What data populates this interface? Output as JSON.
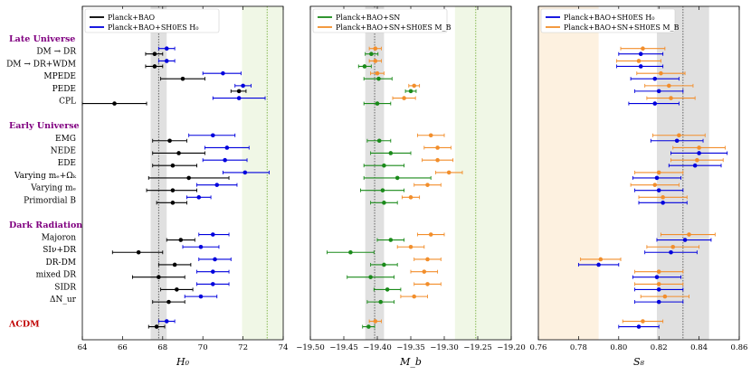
{
  "colors": {
    "black": "#000000",
    "blue": "#0000dd",
    "green": "#1a8a1a",
    "orange": "#f28e2b",
    "group": "#800080",
    "lcdm": "#c00000",
    "band_gray": "#e0e0e0",
    "band_green": "#f0f7e6",
    "band_orange": "#fdf1e0",
    "ref_line": "#555555",
    "ref_green": "#7ab040"
  },
  "rows": [
    {
      "label": "Late Universe",
      "kind": "group"
    },
    {
      "label": "DM → DR",
      "kind": "row"
    },
    {
      "label": "DM → DR+WDM",
      "kind": "row"
    },
    {
      "label": "MPEDE",
      "kind": "row"
    },
    {
      "label": "PEDE",
      "kind": "row"
    },
    {
      "label": "CPL",
      "kind": "row"
    },
    {
      "label": "",
      "kind": "gap"
    },
    {
      "label": "Early Universe",
      "kind": "group"
    },
    {
      "label": "EMG",
      "kind": "row"
    },
    {
      "label": "NEDE",
      "kind": "row"
    },
    {
      "label": "EDE",
      "kind": "row"
    },
    {
      "label": "Varying mₑ+Ωₖ",
      "kind": "row"
    },
    {
      "label": "Varying mₑ",
      "kind": "row"
    },
    {
      "label": "Primordial B",
      "kind": "row"
    },
    {
      "label": "",
      "kind": "gap"
    },
    {
      "label": "Dark Radiation",
      "kind": "group"
    },
    {
      "label": "Majoron",
      "kind": "row"
    },
    {
      "label": "SIν+DR",
      "kind": "row"
    },
    {
      "label": "DR-DM",
      "kind": "row"
    },
    {
      "label": "mixed DR",
      "kind": "row"
    },
    {
      "label": "SIDR",
      "kind": "row"
    },
    {
      "label": "ΔN_ur",
      "kind": "row"
    },
    {
      "label": "",
      "kind": "gap"
    },
    {
      "label": "ΛCDM",
      "kind": "lcdm"
    }
  ],
  "chart_data": [
    {
      "type": "errorbar",
      "xlabel": "H₀",
      "xlim": [
        64,
        74
      ],
      "ticks": [
        64,
        66,
        68,
        70,
        72,
        74
      ],
      "tick_labels": [
        "64",
        "66",
        "68",
        "70",
        "72",
        "74"
      ],
      "legend": [
        {
          "name": "Planck+BAO",
          "color": "black"
        },
        {
          "name": "Planck+BAO+SH0ES H₀",
          "color": "blue"
        }
      ],
      "bands": [
        {
          "from": 67.4,
          "to": 68.2,
          "color": "band_gray"
        },
        {
          "from": 71.95,
          "to": 74.5,
          "color": "band_green"
        }
      ],
      "ref_lines": [
        {
          "x": 67.8,
          "color": "ref_line"
        },
        {
          "x": 73.2,
          "color": "ref_green"
        }
      ],
      "series": [
        {
          "name": "Planck+BAO",
          "color": "black",
          "points": [
            {
              "row": 1,
              "x": 67.6,
              "lo": 67.15,
              "hi": 68.0
            },
            {
              "row": 2,
              "x": 67.6,
              "lo": 67.15,
              "hi": 68.0
            },
            {
              "row": 3,
              "x": 69.0,
              "lo": 67.9,
              "hi": 70.1
            },
            {
              "row": 4,
              "x": 71.8,
              "lo": 71.4,
              "hi": 72.15
            },
            {
              "row": 5,
              "x": 65.6,
              "lo": 64.0,
              "hi": 67.2
            },
            {
              "row": 8,
              "x": 68.35,
              "lo": 67.5,
              "hi": 69.2
            },
            {
              "row": 9,
              "x": 68.8,
              "lo": 67.5,
              "hi": 70.1
            },
            {
              "row": 10,
              "x": 68.5,
              "lo": 67.5,
              "hi": 69.7
            },
            {
              "row": 11,
              "x": 69.3,
              "lo": 67.3,
              "hi": 71.3
            },
            {
              "row": 12,
              "x": 68.5,
              "lo": 67.2,
              "hi": 69.7
            },
            {
              "row": 13,
              "x": 68.5,
              "lo": 67.7,
              "hi": 69.2
            },
            {
              "row": 16,
              "x": 68.9,
              "lo": 68.2,
              "hi": 69.6
            },
            {
              "row": 17,
              "x": 66.8,
              "lo": 65.5,
              "hi": 68.0
            },
            {
              "row": 18,
              "x": 68.6,
              "lo": 67.8,
              "hi": 69.4
            },
            {
              "row": 19,
              "x": 67.8,
              "lo": 66.5,
              "hi": 69.1
            },
            {
              "row": 20,
              "x": 68.7,
              "lo": 67.9,
              "hi": 69.5
            },
            {
              "row": 21,
              "x": 68.3,
              "lo": 67.5,
              "hi": 69.1
            },
            {
              "row": 23,
              "x": 67.7,
              "lo": 67.3,
              "hi": 68.1
            }
          ]
        },
        {
          "name": "Planck+BAO+SH0ES H₀",
          "color": "blue",
          "points": [
            {
              "row": 1,
              "x": 68.2,
              "lo": 67.8,
              "hi": 68.6
            },
            {
              "row": 2,
              "x": 68.2,
              "lo": 67.8,
              "hi": 68.6
            },
            {
              "row": 3,
              "x": 71.0,
              "lo": 70.0,
              "hi": 71.9
            },
            {
              "row": 4,
              "x": 72.0,
              "lo": 71.6,
              "hi": 72.4
            },
            {
              "row": 5,
              "x": 71.8,
              "lo": 70.5,
              "hi": 73.1
            },
            {
              "row": 8,
              "x": 70.5,
              "lo": 69.3,
              "hi": 71.6
            },
            {
              "row": 9,
              "x": 71.2,
              "lo": 70.1,
              "hi": 72.3
            },
            {
              "row": 10,
              "x": 71.1,
              "lo": 70.0,
              "hi": 72.2
            },
            {
              "row": 11,
              "x": 72.1,
              "lo": 71.0,
              "hi": 73.3
            },
            {
              "row": 12,
              "x": 70.7,
              "lo": 69.7,
              "hi": 71.7
            },
            {
              "row": 13,
              "x": 69.8,
              "lo": 69.2,
              "hi": 70.4
            },
            {
              "row": 16,
              "x": 70.5,
              "lo": 69.8,
              "hi": 71.3
            },
            {
              "row": 17,
              "x": 69.9,
              "lo": 69.0,
              "hi": 70.8
            },
            {
              "row": 18,
              "x": 70.6,
              "lo": 69.8,
              "hi": 71.4
            },
            {
              "row": 19,
              "x": 70.5,
              "lo": 69.7,
              "hi": 71.3
            },
            {
              "row": 20,
              "x": 70.5,
              "lo": 69.7,
              "hi": 71.3
            },
            {
              "row": 21,
              "x": 69.9,
              "lo": 69.1,
              "hi": 70.7
            },
            {
              "row": 23,
              "x": 68.2,
              "lo": 67.8,
              "hi": 68.6
            }
          ]
        }
      ]
    },
    {
      "type": "errorbar",
      "xlabel": "M_b",
      "xlim": [
        -19.5,
        -19.2
      ],
      "ticks": [
        -19.5,
        -19.45,
        -19.4,
        -19.35,
        -19.3,
        -19.25,
        -19.2
      ],
      "tick_labels": [
        "−19.50",
        "−19.45",
        "−19.40",
        "−19.35",
        "−19.30",
        "−19.25",
        "−19.20"
      ],
      "legend": [
        {
          "name": "Planck+BAO+SN",
          "color": "green"
        },
        {
          "name": "Planck+BAO+SN+SH0ES M_B",
          "color": "orange"
        }
      ],
      "bands": [
        {
          "from": -19.418,
          "to": -19.39,
          "color": "band_gray"
        },
        {
          "from": -19.284,
          "to": -19.2,
          "color": "band_green"
        }
      ],
      "ref_lines": [
        {
          "x": -19.404,
          "color": "ref_line"
        },
        {
          "x": -19.253,
          "color": "ref_green"
        }
      ],
      "series": [
        {
          "name": "Planck+BAO+SN",
          "color": "green",
          "points": [
            {
              "row": 1,
              "x": -19.409,
              "lo": -19.418,
              "hi": -19.399
            },
            {
              "row": 2,
              "x": -19.419,
              "lo": -19.428,
              "hi": -19.409
            },
            {
              "row": 3,
              "x": -19.398,
              "lo": -19.42,
              "hi": -19.378
            },
            {
              "row": 4,
              "x": -19.35,
              "lo": -19.358,
              "hi": -19.342
            },
            {
              "row": 5,
              "x": -19.4,
              "lo": -19.42,
              "hi": -19.38
            },
            {
              "row": 8,
              "x": -19.397,
              "lo": -19.415,
              "hi": -19.38
            },
            {
              "row": 9,
              "x": -19.38,
              "lo": -19.41,
              "hi": -19.35
            },
            {
              "row": 10,
              "x": -19.39,
              "lo": -19.42,
              "hi": -19.36
            },
            {
              "row": 11,
              "x": -19.37,
              "lo": -19.42,
              "hi": -19.32
            },
            {
              "row": 12,
              "x": -19.392,
              "lo": -19.425,
              "hi": -19.36
            },
            {
              "row": 13,
              "x": -19.39,
              "lo": -19.41,
              "hi": -19.37
            },
            {
              "row": 16,
              "x": -19.38,
              "lo": -19.4,
              "hi": -19.36
            },
            {
              "row": 17,
              "x": -19.44,
              "lo": -19.475,
              "hi": -19.405
            },
            {
              "row": 18,
              "x": -19.39,
              "lo": -19.41,
              "hi": -19.37
            },
            {
              "row": 19,
              "x": -19.41,
              "lo": -19.445,
              "hi": -19.375
            },
            {
              "row": 20,
              "x": -19.385,
              "lo": -19.405,
              "hi": -19.365
            },
            {
              "row": 21,
              "x": -19.395,
              "lo": -19.415,
              "hi": -19.375
            },
            {
              "row": 23,
              "x": -19.413,
              "lo": -19.422,
              "hi": -19.404
            }
          ]
        },
        {
          "name": "Planck+BAO+SN+SH0ES M_B",
          "color": "orange",
          "points": [
            {
              "row": 1,
              "x": -19.403,
              "lo": -19.412,
              "hi": -19.394
            },
            {
              "row": 2,
              "x": -19.403,
              "lo": -19.412,
              "hi": -19.394
            },
            {
              "row": 3,
              "x": -19.4,
              "lo": -19.41,
              "hi": -19.39
            },
            {
              "row": 4,
              "x": -19.345,
              "lo": -19.353,
              "hi": -19.337
            },
            {
              "row": 5,
              "x": -19.36,
              "lo": -19.377,
              "hi": -19.343
            },
            {
              "row": 8,
              "x": -19.32,
              "lo": -19.34,
              "hi": -19.3
            },
            {
              "row": 9,
              "x": -19.31,
              "lo": -19.33,
              "hi": -19.29
            },
            {
              "row": 10,
              "x": -19.31,
              "lo": -19.333,
              "hi": -19.287
            },
            {
              "row": 11,
              "x": -19.293,
              "lo": -19.313,
              "hi": -19.273
            },
            {
              "row": 12,
              "x": -19.325,
              "lo": -19.345,
              "hi": -19.305
            },
            {
              "row": 13,
              "x": -19.35,
              "lo": -19.363,
              "hi": -19.337
            },
            {
              "row": 16,
              "x": -19.32,
              "lo": -19.34,
              "hi": -19.3
            },
            {
              "row": 17,
              "x": -19.35,
              "lo": -19.37,
              "hi": -19.33
            },
            {
              "row": 18,
              "x": -19.325,
              "lo": -19.345,
              "hi": -19.305
            },
            {
              "row": 19,
              "x": -19.33,
              "lo": -19.35,
              "hi": -19.31
            },
            {
              "row": 20,
              "x": -19.325,
              "lo": -19.345,
              "hi": -19.305
            },
            {
              "row": 21,
              "x": -19.345,
              "lo": -19.365,
              "hi": -19.325
            },
            {
              "row": 23,
              "x": -19.403,
              "lo": -19.412,
              "hi": -19.394
            }
          ]
        }
      ]
    },
    {
      "type": "errorbar",
      "xlabel": "S₈",
      "xlim": [
        0.76,
        0.86
      ],
      "ticks": [
        0.76,
        0.78,
        0.8,
        0.82,
        0.84,
        0.86
      ],
      "tick_labels": [
        "0.76",
        "0.78",
        "0.80",
        "0.82",
        "0.84",
        "0.86"
      ],
      "legend": [
        {
          "name": "Planck+BAO+SH0ES H₀",
          "color": "blue"
        },
        {
          "name": "Planck+BAO+SN+SH0ES M_B",
          "color": "orange"
        }
      ],
      "bands": [
        {
          "from": 0.76,
          "to": 0.79,
          "color": "band_orange"
        },
        {
          "from": 0.819,
          "to": 0.845,
          "color": "band_gray"
        }
      ],
      "ref_lines": [
        {
          "x": 0.832,
          "color": "ref_line"
        }
      ],
      "series": [
        {
          "name": "Planck+BAO+SH0ES H₀",
          "color": "blue",
          "points": [
            {
              "row": 1,
              "x": 0.811,
              "lo": 0.8,
              "hi": 0.822
            },
            {
              "row": 2,
              "x": 0.811,
              "lo": 0.799,
              "hi": 0.822
            },
            {
              "row": 3,
              "x": 0.818,
              "lo": 0.806,
              "hi": 0.83
            },
            {
              "row": 4,
              "x": 0.82,
              "lo": 0.808,
              "hi": 0.832
            },
            {
              "row": 5,
              "x": 0.818,
              "lo": 0.805,
              "hi": 0.83
            },
            {
              "row": 8,
              "x": 0.829,
              "lo": 0.816,
              "hi": 0.842
            },
            {
              "row": 9,
              "x": 0.84,
              "lo": 0.826,
              "hi": 0.854
            },
            {
              "row": 10,
              "x": 0.838,
              "lo": 0.825,
              "hi": 0.851
            },
            {
              "row": 11,
              "x": 0.819,
              "lo": 0.807,
              "hi": 0.831
            },
            {
              "row": 12,
              "x": 0.82,
              "lo": 0.808,
              "hi": 0.832
            },
            {
              "row": 13,
              "x": 0.822,
              "lo": 0.81,
              "hi": 0.834
            },
            {
              "row": 16,
              "x": 0.833,
              "lo": 0.819,
              "hi": 0.846
            },
            {
              "row": 17,
              "x": 0.826,
              "lo": 0.813,
              "hi": 0.839
            },
            {
              "row": 18,
              "x": 0.79,
              "lo": 0.78,
              "hi": 0.8
            },
            {
              "row": 19,
              "x": 0.819,
              "lo": 0.807,
              "hi": 0.831
            },
            {
              "row": 20,
              "x": 0.82,
              "lo": 0.808,
              "hi": 0.832
            },
            {
              "row": 21,
              "x": 0.82,
              "lo": 0.808,
              "hi": 0.832
            },
            {
              "row": 23,
              "x": 0.81,
              "lo": 0.8,
              "hi": 0.82
            }
          ]
        },
        {
          "name": "Planck+BAO+SN+SH0ES M_B",
          "color": "orange",
          "points": [
            {
              "row": 1,
              "x": 0.812,
              "lo": 0.801,
              "hi": 0.823
            },
            {
              "row": 2,
              "x": 0.81,
              "lo": 0.799,
              "hi": 0.821
            },
            {
              "row": 3,
              "x": 0.821,
              "lo": 0.809,
              "hi": 0.833
            },
            {
              "row": 4,
              "x": 0.825,
              "lo": 0.813,
              "hi": 0.837
            },
            {
              "row": 5,
              "x": 0.826,
              "lo": 0.814,
              "hi": 0.838
            },
            {
              "row": 8,
              "x": 0.83,
              "lo": 0.817,
              "hi": 0.843
            },
            {
              "row": 9,
              "x": 0.84,
              "lo": 0.827,
              "hi": 0.853
            },
            {
              "row": 10,
              "x": 0.839,
              "lo": 0.826,
              "hi": 0.852
            },
            {
              "row": 11,
              "x": 0.82,
              "lo": 0.808,
              "hi": 0.832
            },
            {
              "row": 12,
              "x": 0.818,
              "lo": 0.806,
              "hi": 0.83
            },
            {
              "row": 13,
              "x": 0.822,
              "lo": 0.81,
              "hi": 0.834
            },
            {
              "row": 16,
              "x": 0.835,
              "lo": 0.821,
              "hi": 0.848
            },
            {
              "row": 17,
              "x": 0.827,
              "lo": 0.814,
              "hi": 0.84
            },
            {
              "row": 18,
              "x": 0.791,
              "lo": 0.781,
              "hi": 0.801
            },
            {
              "row": 19,
              "x": 0.82,
              "lo": 0.808,
              "hi": 0.832
            },
            {
              "row": 20,
              "x": 0.82,
              "lo": 0.808,
              "hi": 0.832
            },
            {
              "row": 21,
              "x": 0.823,
              "lo": 0.811,
              "hi": 0.835
            },
            {
              "row": 23,
              "x": 0.812,
              "lo": 0.802,
              "hi": 0.822
            }
          ]
        }
      ]
    }
  ]
}
